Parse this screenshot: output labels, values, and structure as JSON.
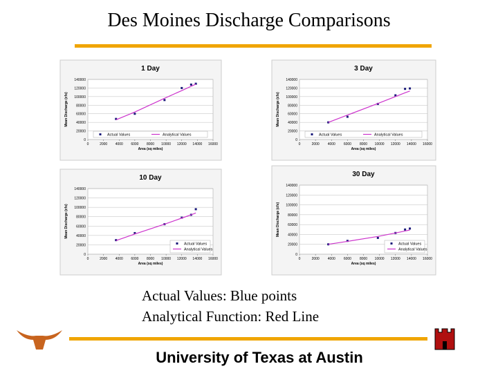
{
  "slide": {
    "title": "Des Moines Discharge Comparisons",
    "captions": [
      "Actual Values: Blue points",
      "Analytical Function: Red Line"
    ],
    "footer": "University of Texas at Austin"
  },
  "chart_data": [
    {
      "type": "scatter",
      "title": "1 Day",
      "x_label": "Area (sq miles)",
      "y_label": "Mean Discharge (cfs)",
      "x": [
        3600,
        6000,
        9800,
        12000,
        13200,
        13800
      ],
      "series": [
        {
          "name": "Actual Values",
          "color": "#1a1a7a",
          "mode": "markers",
          "values": [
            48000,
            60000,
            92000,
            120000,
            128000,
            130000
          ]
        },
        {
          "name": "Analytical Values",
          "color": "#cc33cc",
          "mode": "lines",
          "values": [
            46000,
            64000,
            96000,
            114000,
            124000,
            129000
          ]
        }
      ],
      "xlim": [
        0,
        16000
      ],
      "xticks": [
        0,
        2000,
        4000,
        6000,
        8000,
        10000,
        12000,
        14000,
        16000
      ],
      "ylim": [
        0,
        140000
      ],
      "yticks": [
        0,
        20000,
        40000,
        60000,
        80000,
        100000,
        120000,
        140000
      ],
      "grid": true,
      "legend": "bottom"
    },
    {
      "type": "scatter",
      "title": "3 Day",
      "x_label": "Area (sq miles)",
      "y_label": "Mean Discharge (cfs)",
      "x": [
        3600,
        6000,
        9800,
        12000,
        13200,
        13800
      ],
      "series": [
        {
          "name": "Actual Values",
          "color": "#1a1a7a",
          "mode": "markers",
          "values": [
            40000,
            53000,
            83000,
            103000,
            118000,
            119000
          ]
        },
        {
          "name": "Analytical Values",
          "color": "#cc33cc",
          "mode": "lines",
          "values": [
            40000,
            57000,
            84000,
            100000,
            109000,
            113000
          ]
        }
      ],
      "xlim": [
        0,
        16000
      ],
      "xticks": [
        0,
        2000,
        4000,
        6000,
        8000,
        10000,
        12000,
        14000,
        16000
      ],
      "ylim": [
        0,
        140000
      ],
      "yticks": [
        0,
        20000,
        40000,
        60000,
        80000,
        100000,
        120000,
        140000
      ],
      "grid": true,
      "legend": "bottom"
    },
    {
      "type": "scatter",
      "title": "10 Day",
      "x_label": "Area (sq miles)",
      "y_label": "Mean Discharge (cfs)",
      "x": [
        3600,
        6000,
        9800,
        12000,
        13200,
        13800
      ],
      "series": [
        {
          "name": "Actual Values",
          "color": "#1a1a7a",
          "mode": "markers",
          "values": [
            30000,
            45000,
            64000,
            78000,
            84000,
            96000
          ]
        },
        {
          "name": "Analytical Values",
          "color": "#cc33cc",
          "mode": "lines",
          "values": [
            29000,
            43000,
            64000,
            77000,
            84000,
            88000
          ]
        }
      ],
      "xlim": [
        0,
        16000
      ],
      "xticks": [
        0,
        2000,
        4000,
        6000,
        8000,
        10000,
        12000,
        14000,
        16000
      ],
      "ylim": [
        0,
        140000
      ],
      "yticks": [
        0,
        20000,
        40000,
        60000,
        80000,
        100000,
        120000,
        140000
      ],
      "grid": true,
      "legend": "lower right"
    },
    {
      "type": "scatter",
      "title": "30 Day",
      "x_label": "Area (sq miles)",
      "y_label": "Mean Discharge (cfs)",
      "x": [
        3600,
        6000,
        9800,
        12000,
        13200,
        13800
      ],
      "series": [
        {
          "name": "Actual Values",
          "color": "#1a1a7a",
          "mode": "markers",
          "values": [
            20000,
            27000,
            33000,
            43000,
            50000,
            52000
          ]
        },
        {
          "name": "Analytical Values",
          "color": "#cc33cc",
          "mode": "lines",
          "values": [
            20000,
            26000,
            36000,
            43000,
            47000,
            49000
          ]
        }
      ],
      "xlim": [
        0,
        16000
      ],
      "xticks": [
        0,
        2000,
        4000,
        6000,
        8000,
        10000,
        12000,
        14000,
        16000
      ],
      "ylim": [
        0,
        140000
      ],
      "yticks": [
        0,
        20000,
        40000,
        60000,
        80000,
        100000,
        120000,
        140000
      ],
      "grid": true,
      "legend": "lower right"
    }
  ]
}
